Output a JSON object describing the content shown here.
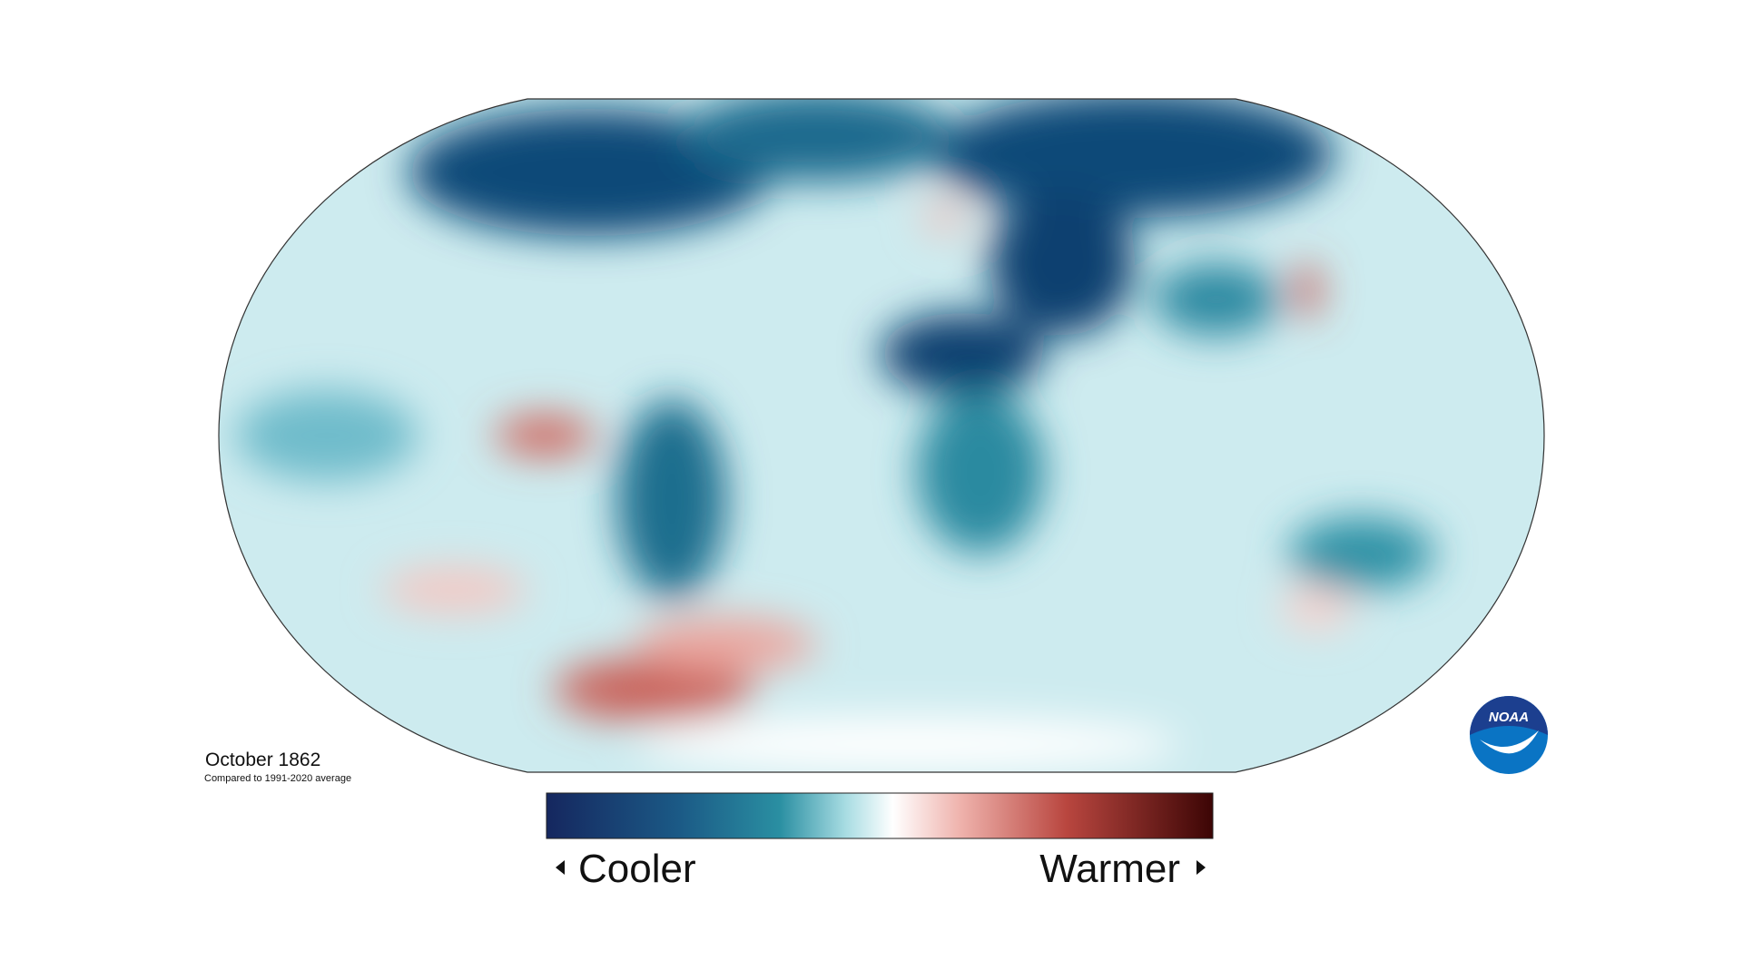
{
  "map": {
    "title": "October 1862",
    "subtitle": "Compared to 1991-2020 average"
  },
  "legend": {
    "low_label": "Cooler",
    "high_label": "Warmer"
  },
  "logo": {
    "text": "NOAA"
  }
}
